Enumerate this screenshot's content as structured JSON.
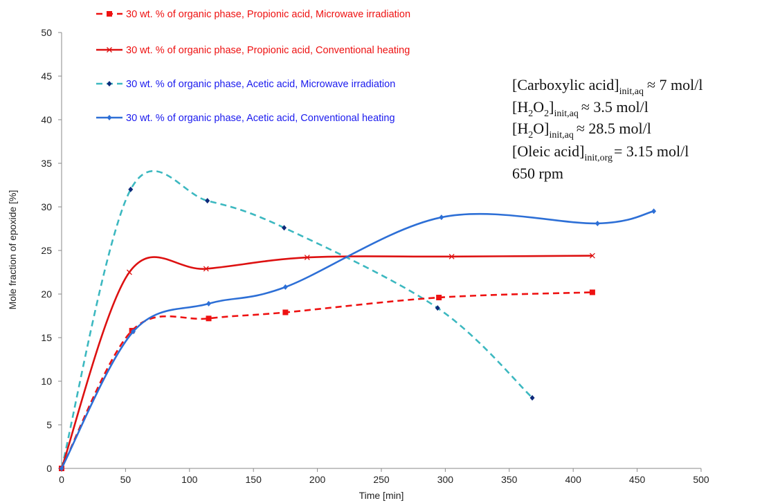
{
  "chart_data": {
    "type": "line",
    "xlabel": "Time [min]",
    "ylabel": "Mole fraction of epoxide [%]",
    "xlim": [
      0,
      500
    ],
    "ylim": [
      0,
      50
    ],
    "x_ticks": [
      0,
      50,
      100,
      150,
      200,
      250,
      300,
      350,
      400,
      450,
      500
    ],
    "y_ticks": [
      0,
      5,
      10,
      15,
      20,
      25,
      30,
      35,
      40,
      45,
      50
    ],
    "grid": false,
    "legend_position": "top-left",
    "series": [
      {
        "name": "30 wt. % of organic phase, Propionic acid, Microwave irradiation",
        "color": "#ee1111",
        "text_color": "#ee1111",
        "dash": true,
        "marker": "square",
        "points": [
          [
            0,
            0
          ],
          [
            55,
            15.8
          ],
          [
            115,
            17.2
          ],
          [
            175,
            17.9
          ],
          [
            295,
            19.6
          ],
          [
            415,
            20.2
          ]
        ]
      },
      {
        "name": "30 wt. % of organic phase, Propionic acid, Conventional heating",
        "color": "#dd1111",
        "text_color": "#ee1111",
        "dash": false,
        "marker": "x",
        "points": [
          [
            0,
            0
          ],
          [
            53,
            22.5
          ],
          [
            113,
            22.9
          ],
          [
            192,
            24.2
          ],
          [
            305,
            24.3
          ],
          [
            415,
            24.4
          ]
        ]
      },
      {
        "name": "30 wt. % of organic phase, Acetic acid, Microwave irradiation",
        "color": "#3cb8c0",
        "text_color": "#1a1aee",
        "dash": true,
        "marker": "diamond",
        "marker_color": "#0d2a7a",
        "points": [
          [
            0,
            0
          ],
          [
            54,
            32.0
          ],
          [
            114,
            30.7
          ],
          [
            174,
            27.6
          ],
          [
            294,
            18.4
          ],
          [
            368,
            8.1
          ]
        ]
      },
      {
        "name": "30 wt. % of organic phase, Acetic acid, Conventional heating",
        "color": "#2d6fd6",
        "text_color": "#1a1aee",
        "dash": false,
        "marker": "diamond",
        "marker_color": "#2d6fd6",
        "points": [
          [
            0,
            0
          ],
          [
            56,
            15.7
          ],
          [
            115,
            18.9
          ],
          [
            175,
            20.8
          ],
          [
            297,
            28.8
          ],
          [
            419,
            28.1
          ],
          [
            463,
            29.5
          ]
        ]
      }
    ]
  },
  "annotation": {
    "line1": {
      "main": "[Carboxylic acid]",
      "sub": "init,aq",
      "rest": "≈  7 mol/l"
    },
    "line2": {
      "main_a": "[H",
      "sub_a": "2",
      "main_b": "O",
      "sub_b": "2",
      "main_c": "]",
      "sub": "init,aq",
      "rest": "≈ 3.5 mol/l"
    },
    "line3": {
      "main_a": "[H",
      "sub_a": "2",
      "main_b": "O]",
      "sub": "init,aq",
      "rest": "≈ 28.5 mol/l"
    },
    "line4": {
      "main": "[Oleic acid]",
      "sub": "init,org",
      "rest": "= 3.15 mol/l"
    },
    "line5": "650 rpm"
  }
}
